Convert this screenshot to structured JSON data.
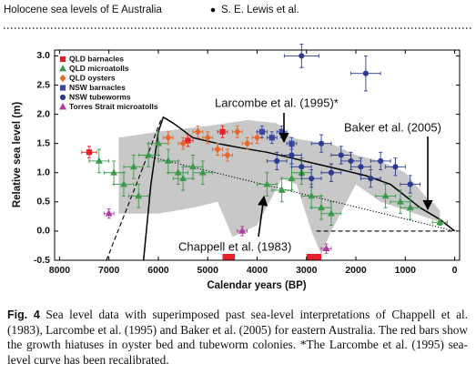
{
  "header": {
    "running_title": "Holocene sea levels of E Australia",
    "authors": "S. E. Lewis et al."
  },
  "chart_data": {
    "type": "scatter",
    "y_label": "Relative sea level (m)",
    "x_label": "Calendar years (BP)",
    "xlim": [
      8100,
      -100
    ],
    "ylim": [
      -0.5,
      3.1
    ],
    "xticks": [
      8000,
      7000,
      6000,
      5000,
      4000,
      3000,
      2000,
      1000,
      0
    ],
    "yticks": [
      -0.5,
      {
        "value": 0,
        "label": "0.0"
      },
      0.5,
      {
        "value": 1,
        "label": "1.0"
      },
      1.5,
      {
        "value": 2,
        "label": "2.0"
      },
      2.5,
      {
        "value": 3,
        "label": "3.0"
      }
    ],
    "grid": false,
    "legend": "upper left",
    "shaded_region": {
      "color": "#c8c8c8",
      "x": [
        6800,
        6000,
        5000,
        4200,
        3600,
        3300,
        3000,
        2500,
        2000,
        1500,
        1000,
        600,
        400,
        300,
        300,
        800,
        1500,
        2000,
        2500,
        2700,
        2900,
        3200,
        3500,
        4000,
        4500,
        4800,
        5300,
        6000,
        6800
      ],
      "y": [
        1.6,
        1.7,
        1.8,
        1.9,
        1.85,
        1.6,
        1.55,
        1.5,
        1.3,
        1.2,
        1.0,
        0.6,
        0.45,
        0.35,
        0.15,
        0.3,
        0.5,
        0.8,
        0.0,
        -0.4,
        0.0,
        0.8,
        0.9,
        0.1,
        -0.1,
        0.5,
        0.4,
        0.3,
        0.3
      ]
    },
    "curves": [
      {
        "style": "solid",
        "x": [
          6300,
          6150,
          6000,
          5900,
          5700,
          5300,
          4800,
          4300,
          3800,
          3300,
          2800,
          2300,
          1800,
          1300,
          1000,
          700,
          500,
          300,
          0
        ],
        "y": [
          -0.5,
          0.8,
          1.7,
          1.95,
          1.85,
          1.6,
          1.5,
          1.42,
          1.35,
          1.25,
          1.15,
          1.05,
          0.95,
          0.8,
          0.6,
          0.4,
          0.3,
          0.2,
          0.0
        ]
      },
      {
        "style": "dashed",
        "x": [
          7050,
          6400,
          5950
        ],
        "y": [
          -0.5,
          0.9,
          1.9
        ]
      },
      {
        "style": "dashed",
        "x": [
          2800,
          400,
          0
        ],
        "y": [
          0,
          0,
          0
        ]
      },
      {
        "style": "dotted",
        "x": [
          6300,
          0
        ],
        "y": [
          1.3,
          0
        ]
      }
    ],
    "hiatus_bars": {
      "color": "#e8202a",
      "start": [
        4700,
        3000
      ],
      "end": [
        4450,
        2700
      ]
    },
    "series": [
      {
        "name": "QLD barnacles",
        "color": "#e8202a",
        "marker": "square",
        "x": [
          7400,
          5400,
          4700
        ],
        "values": [
          1.35,
          1.55,
          1.7
        ],
        "xerr": [
          150,
          100,
          100
        ],
        "yerr": [
          0.1,
          0.1,
          0.1
        ]
      },
      {
        "name": "QLD microatolls",
        "color": "#3a9a4a",
        "marker": "triangle",
        "x": [
          7200,
          6900,
          6700,
          6500,
          6400,
          6200,
          6000,
          5800,
          5600,
          5500,
          5300,
          5100,
          3800,
          3500,
          3300,
          3100,
          2900,
          2700,
          2500,
          1400,
          1100,
          900,
          300
        ],
        "values": [
          1.2,
          1.0,
          0.8,
          1.1,
          0.6,
          1.3,
          1.5,
          1.2,
          1.0,
          0.9,
          1.1,
          1.0,
          0.8,
          0.7,
          0.9,
          1.0,
          0.6,
          0.4,
          0.3,
          0.6,
          0.5,
          0.4,
          0.15
        ],
        "xerr": [
          200,
          200,
          200,
          200,
          200,
          200,
          200,
          200,
          200,
          200,
          200,
          200,
          200,
          200,
          200,
          200,
          200,
          200,
          200,
          200,
          200,
          200,
          150
        ],
        "yerr": [
          0.2,
          0.2,
          0.2,
          0.2,
          0.2,
          0.2,
          0.2,
          0.2,
          0.2,
          0.2,
          0.2,
          0.2,
          0.2,
          0.2,
          0.2,
          0.2,
          0.2,
          0.2,
          0.2,
          0.2,
          0.2,
          0.2,
          0.05
        ]
      },
      {
        "name": "QLD oysters",
        "color": "#e8672a",
        "marker": "diamond",
        "x": [
          5800,
          5500,
          5200,
          5000,
          4800,
          4600,
          4400,
          4200,
          4000
        ],
        "values": [
          1.6,
          1.5,
          1.7,
          1.6,
          1.4,
          1.3,
          1.7,
          1.5,
          1.6
        ],
        "xerr": [
          100,
          100,
          100,
          100,
          100,
          100,
          100,
          100,
          100
        ],
        "yerr": [
          0.1,
          0.1,
          0.1,
          0.1,
          0.1,
          0.1,
          0.1,
          0.1,
          0.1
        ]
      },
      {
        "name": "NSW barnacles",
        "color": "#3a46a0",
        "marker": "square",
        "x": [
          3900,
          3700,
          3500,
          3300
        ],
        "values": [
          1.7,
          1.6,
          1.7,
          1.5
        ],
        "xerr": [
          100,
          100,
          100,
          100
        ],
        "yerr": [
          0.1,
          0.1,
          0.1,
          0.1
        ]
      },
      {
        "name": "NSW tubeworms",
        "color": "#2c3a8f",
        "marker": "circle",
        "x": [
          3100,
          1800,
          3600,
          3300,
          3100,
          2900,
          2700,
          2500,
          2300,
          2100,
          1900,
          1700,
          1500,
          1200,
          900
        ],
        "values": [
          3.0,
          2.7,
          1.2,
          1.3,
          1.1,
          0.9,
          1.5,
          1.0,
          1.3,
          1.2,
          1.1,
          0.9,
          1.2,
          1.1,
          0.8
        ],
        "xerr": [
          350,
          300,
          200,
          200,
          200,
          200,
          200,
          200,
          200,
          200,
          200,
          200,
          200,
          200,
          200
        ],
        "yerr": [
          0.2,
          0.3,
          0.15,
          0.15,
          0.15,
          0.15,
          0.15,
          0.15,
          0.15,
          0.15,
          0.15,
          0.15,
          0.15,
          0.15,
          0.15
        ]
      },
      {
        "name": "Torres Strait microatolls",
        "color": "#b03aa0",
        "marker": "triangle",
        "x": [
          7000,
          4300,
          2600
        ],
        "values": [
          0.3,
          0.0,
          -0.3
        ],
        "xerr": [
          100,
          100,
          100
        ],
        "yerr": [
          0.08,
          0.08,
          0.08
        ]
      }
    ],
    "annotations": [
      "Larcombe et al. (1995)*",
      "Baker et al. (2005)",
      "Chappell et al. (1983)"
    ]
  },
  "caption": {
    "label": "Fig. 4",
    "text": "Sea level data with superimposed past sea-level interpretations of Chappell et al. (1983), Larcombe et al. (1995) and Baker et al. (2005) for eastern Australia. The red bars show the growth hiatuses in oyster bed and tubeworm colonies. *The Larcombe et al. (1995) sea-level curve has been recalibrated."
  }
}
